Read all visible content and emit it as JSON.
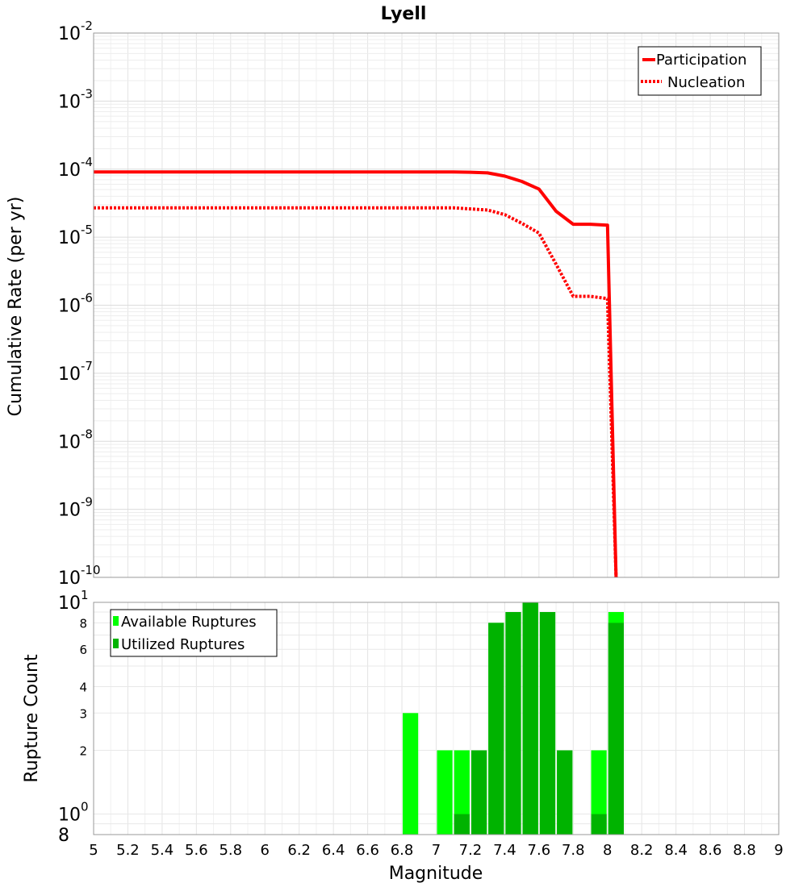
{
  "chart_data": [
    {
      "type": "line",
      "title": "Lyell",
      "xlabel": "Magnitude",
      "ylabel": "Cumulative Rate (per yr)",
      "xlim": [
        5,
        9
      ],
      "ylim": [
        1e-10,
        0.01
      ],
      "yscale": "log",
      "grid": true,
      "legend_position": "top-right",
      "y_tick_labels": [
        {
          "base": "10",
          "exp": "-2"
        },
        {
          "base": "10",
          "exp": "-3"
        },
        {
          "base": "10",
          "exp": "-4"
        },
        {
          "base": "10",
          "exp": "-5"
        },
        {
          "base": "10",
          "exp": "-6"
        },
        {
          "base": "10",
          "exp": "-7"
        },
        {
          "base": "10",
          "exp": "-8"
        },
        {
          "base": "10",
          "exp": "-9"
        },
        {
          "base": "10",
          "exp": "-10"
        }
      ],
      "series": [
        {
          "name": "Participation",
          "color": "#ff0000",
          "style": "solid",
          "x": [
            5.0,
            6.0,
            7.0,
            7.1,
            7.2,
            7.3,
            7.4,
            7.5,
            7.6,
            7.7,
            7.8,
            7.9,
            8.0,
            8.05
          ],
          "y": [
            9.1e-05,
            9.1e-05,
            9.1e-05,
            9.1e-05,
            9e-05,
            8.8e-05,
            7.9e-05,
            6.6e-05,
            5.1e-05,
            2.4e-05,
            1.55e-05,
            1.55e-05,
            1.5e-05,
            1e-10
          ]
        },
        {
          "name": "Nucleation",
          "color": "#ff0000",
          "style": "dotted",
          "x": [
            5.0,
            6.0,
            7.0,
            7.1,
            7.2,
            7.3,
            7.4,
            7.5,
            7.6,
            7.7,
            7.8,
            7.9,
            8.0,
            8.05
          ],
          "y": [
            2.7e-05,
            2.7e-05,
            2.7e-05,
            2.7e-05,
            2.6e-05,
            2.5e-05,
            2.15e-05,
            1.6e-05,
            1.15e-05,
            4e-06,
            1.35e-06,
            1.35e-06,
            1.25e-06,
            1e-10
          ]
        }
      ]
    },
    {
      "type": "bar",
      "title": "",
      "xlabel": "Magnitude",
      "ylabel": "Rupture Count",
      "xlim": [
        5,
        9
      ],
      "ylim": [
        0.8,
        10
      ],
      "yscale": "log",
      "grid": true,
      "legend_position": "top-left",
      "x_ticks": [
        5,
        5.2,
        5.4,
        5.6,
        5.8,
        6,
        6.2,
        6.4,
        6.6,
        6.8,
        7,
        7.2,
        7.4,
        7.6,
        7.8,
        8,
        8.2,
        8.4,
        8.6,
        8.8,
        9
      ],
      "x_tick_labels": [
        "5",
        "5.2",
        "5.4",
        "5.6",
        "5.8",
        "6",
        "6.2",
        "6.4",
        "6.6",
        "6.8",
        "7",
        "7.2",
        "7.4",
        "7.6",
        "7.8",
        "8",
        "8.2",
        "8.4",
        "8.6",
        "8.8",
        "9"
      ],
      "y_minor_ticks": [
        {
          "value": 8,
          "label": "8"
        },
        {
          "value": 6,
          "label": "6"
        },
        {
          "value": 4,
          "label": "4"
        },
        {
          "value": 3,
          "label": "3"
        },
        {
          "value": 2,
          "label": "2"
        }
      ],
      "y_major_ticks": [
        {
          "value": 10,
          "base": "10",
          "exp": "1"
        },
        {
          "value": 1,
          "base": "10",
          "exp": "0"
        },
        {
          "value": 0.8,
          "base": "8",
          "exp": ""
        }
      ],
      "bin_width": 0.1,
      "series": [
        {
          "name": "Available Ruptures",
          "color": "#00ff00",
          "x": [
            6.85,
            7.05,
            7.15,
            7.25,
            7.35,
            7.45,
            7.55,
            7.65,
            7.75,
            7.95,
            8.05
          ],
          "values": [
            3,
            2,
            2,
            2,
            8,
            9,
            10,
            9,
            2,
            2,
            9
          ]
        },
        {
          "name": "Utilized Ruptures",
          "color": "#00b300",
          "x": [
            7.15,
            7.25,
            7.35,
            7.45,
            7.55,
            7.65,
            7.75,
            7.95,
            8.05
          ],
          "values": [
            1,
            2,
            8,
            9,
            10,
            9,
            2,
            1,
            8
          ]
        }
      ]
    }
  ]
}
